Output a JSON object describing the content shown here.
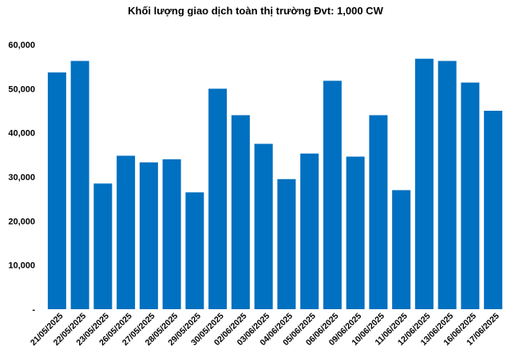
{
  "chart_data": {
    "type": "bar",
    "title": "Khối lượng giao dịch toàn thị trường Đvt: 1,000 CW",
    "xlabel": "",
    "ylabel": "",
    "categories": [
      "21/05/2025",
      "22/05/2025",
      "23/05/2025",
      "26/05/2025",
      "27/05/2025",
      "28/05/2025",
      "29/05/2025",
      "30/05/2025",
      "02/06/2025",
      "03/06/2025",
      "04/06/2025",
      "05/06/2025",
      "06/06/2025",
      "09/06/2025",
      "10/06/2025",
      "11/06/2025",
      "12/06/2025",
      "13/06/2025",
      "16/06/2025",
      "17/06/2025"
    ],
    "values": [
      53700,
      56300,
      28500,
      34800,
      33300,
      34000,
      26500,
      50000,
      44000,
      37500,
      29500,
      35300,
      51800,
      34600,
      44000,
      27000,
      56800,
      56300,
      51400,
      45000
    ],
    "ylim": [
      0,
      60000
    ],
    "yticks": [
      0,
      10000,
      20000,
      30000,
      40000,
      50000,
      60000
    ],
    "ytick_labels": [
      "-",
      "10,000",
      "20,000",
      "30,000",
      "40,000",
      "50,000",
      "60,000"
    ],
    "bar_color": "#0070C0",
    "grid": false,
    "legend": "none"
  }
}
